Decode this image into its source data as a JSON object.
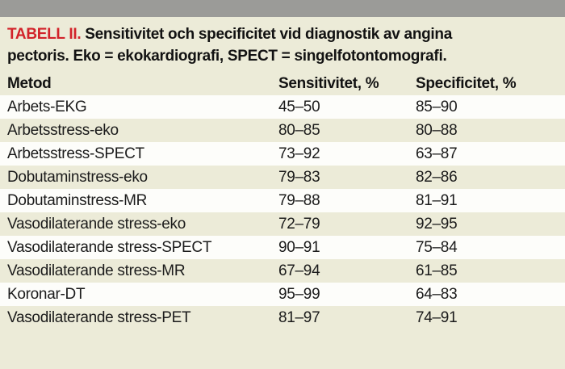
{
  "page": {
    "background_color": "#ECEBD8",
    "top_bar_color": "#9B9B98",
    "accent_red": "#D2232A",
    "row_alt_color": "#FDFDFA"
  },
  "caption": {
    "tag": "TABELL II.",
    "line1": "Sensitivitet och specificitet vid diagnostik av angina",
    "line2": "pectoris. Eko = ekokardiografi, SPECT = singelfotontomografi."
  },
  "table": {
    "headers": {
      "method": "Metod",
      "sensitivity": "Sensitivitet, %",
      "specificity": "Specificitet, %"
    },
    "rows": [
      {
        "method": "Arbets-EKG",
        "sensitivity": "45–50",
        "specificity": "85–90"
      },
      {
        "method": "Arbetsstress-eko",
        "sensitivity": "80–85",
        "specificity": "80–88"
      },
      {
        "method": "Arbetsstress-SPECT",
        "sensitivity": "73–92",
        "specificity": "63–87"
      },
      {
        "method": "Dobutaminstress-eko",
        "sensitivity": "79–83",
        "specificity": "82–86"
      },
      {
        "method": "Dobutaminstress-MR",
        "sensitivity": "79–88",
        "specificity": "81–91"
      },
      {
        "method": "Vasodilaterande stress-eko",
        "sensitivity": "72–79",
        "specificity": "92–95"
      },
      {
        "method": "Vasodilaterande stress-SPECT",
        "sensitivity": "90–91",
        "specificity": "75–84"
      },
      {
        "method": "Vasodilaterande stress-MR",
        "sensitivity": "67–94",
        "specificity": "61–85"
      },
      {
        "method": "Koronar-DT",
        "sensitivity": "95–99",
        "specificity": "64–83"
      },
      {
        "method": "Vasodilaterande stress-PET",
        "sensitivity": "81–97",
        "specificity": "74–91"
      }
    ]
  },
  "chart_data": {
    "type": "table",
    "title": "TABELL II. Sensitivitet och specificitet vid diagnostik av angina pectoris. Eko = ekokardiografi, SPECT = singelfotontomografi.",
    "columns": [
      "Metod",
      "Sensitivitet, %",
      "Specificitet, %"
    ],
    "rows": [
      [
        "Arbets-EKG",
        "45–50",
        "85–90"
      ],
      [
        "Arbetsstress-eko",
        "80–85",
        "80–88"
      ],
      [
        "Arbetsstress-SPECT",
        "73–92",
        "63–87"
      ],
      [
        "Dobutaminstress-eko",
        "79–83",
        "82–86"
      ],
      [
        "Dobutaminstress-MR",
        "79–88",
        "81–91"
      ],
      [
        "Vasodilaterande stress-eko",
        "72–79",
        "92–95"
      ],
      [
        "Vasodilaterande stress-SPECT",
        "90–91",
        "75–84"
      ],
      [
        "Vasodilaterande stress-MR",
        "67–94",
        "61–85"
      ],
      [
        "Koronar-DT",
        "95–99",
        "64–83"
      ],
      [
        "Vasodilaterande stress-PET",
        "81–97",
        "74–91"
      ]
    ]
  }
}
